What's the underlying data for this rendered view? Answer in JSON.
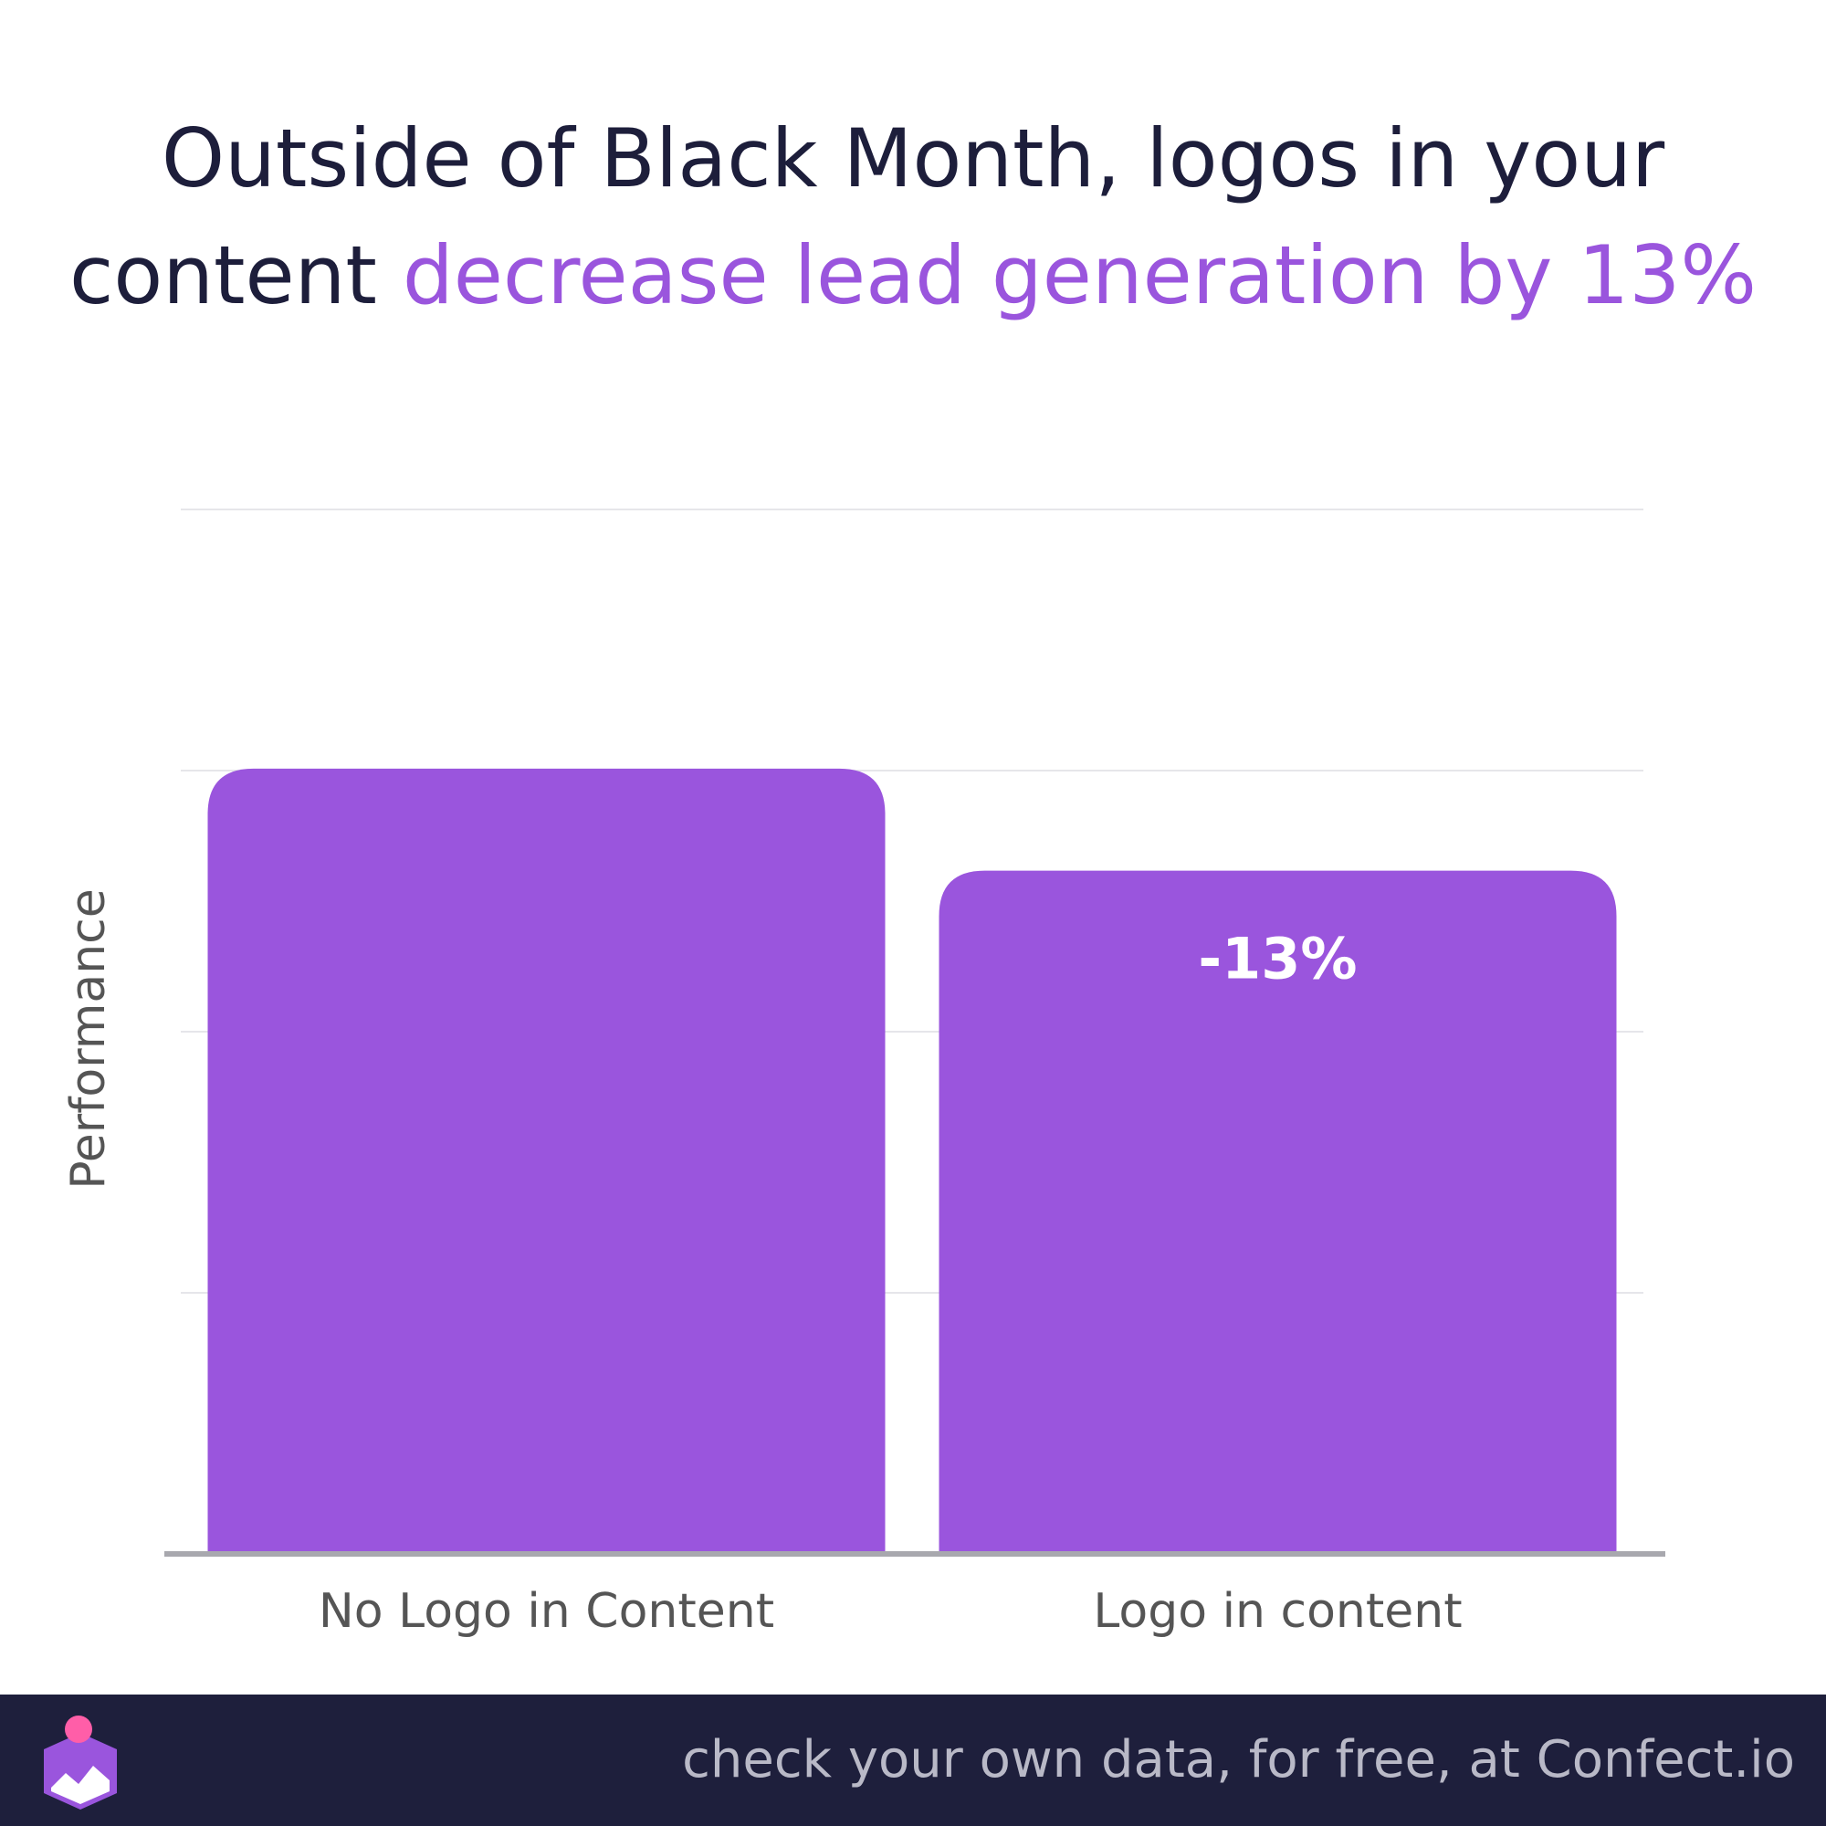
{
  "title": {
    "line1": "Outside of Black Month, logos in your",
    "line2_prefix": "content ",
    "line2_highlight": "decrease lead generation by 13%"
  },
  "colors": {
    "bar": "#9a55dd",
    "title": "#1d1e3b",
    "accent": "#9a55dd",
    "footer_bg": "#1e1f3c",
    "footer_text": "#b9b9c7",
    "axis_text": "#555555",
    "grid": "#e6e6ea"
  },
  "chart_data": {
    "type": "bar",
    "categories": [
      "No Logo in Content",
      "Logo in content"
    ],
    "values": [
      100,
      87
    ],
    "data_labels": [
      "",
      "-13%"
    ],
    "xlabel": "",
    "ylabel": "Performance",
    "ylim": [
      0,
      133
    ],
    "grid": true
  },
  "footer": {
    "text": "check your own data, for free, at Confect.io",
    "logo_icon": "confect-logo-icon"
  }
}
